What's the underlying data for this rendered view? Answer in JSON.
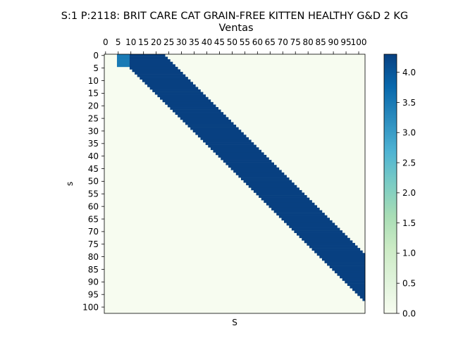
{
  "chart_data": {
    "type": "heatmap",
    "title": "S:1 P:2118: BRIT CARE CAT GRAIN-FREE KITTEN HEALTHY G&D 2 KG",
    "subtitle": "Ventas",
    "xlabel": "S",
    "ylabel": "s",
    "x_ticks": [
      "0",
      "5",
      "10",
      "15",
      "20",
      "25",
      "30",
      "35",
      "40",
      "45",
      "50",
      "55",
      "60",
      "65",
      "70",
      "75",
      "80",
      "85",
      "90",
      "95",
      "100"
    ],
    "y_ticks": [
      "0",
      "5",
      "10",
      "15",
      "20",
      "25",
      "30",
      "35",
      "40",
      "45",
      "50",
      "55",
      "60",
      "65",
      "70",
      "75",
      "80",
      "85",
      "90",
      "95",
      "100"
    ],
    "x_range": [
      0,
      103
    ],
    "y_range": [
      0,
      103
    ],
    "colorbar": {
      "ticks": [
        "0.0",
        "0.5",
        "1.0",
        "1.5",
        "2.0",
        "2.5",
        "3.0",
        "3.5",
        "4.0"
      ],
      "tick_values": [
        0,
        0.5,
        1.0,
        1.5,
        2.0,
        2.5,
        3.0,
        3.5,
        4.0
      ],
      "min": 0,
      "max": 4.3,
      "colormap": "GnBu"
    },
    "cells": {
      "description_rule": "value at (s,S) is 4.3 where S >= s+5 and S <= s+23, otherwise 0; except s in [0..4] with S in [5..9] which is 3.5",
      "band_start_offset": 5,
      "band_end_offset": 23,
      "band_value": 4.3,
      "special": {
        "s": [
          0,
          4
        ],
        "S": [
          5,
          9
        ],
        "value": 3.5
      },
      "background_value": 0,
      "right_edge_cap": 101
    }
  }
}
